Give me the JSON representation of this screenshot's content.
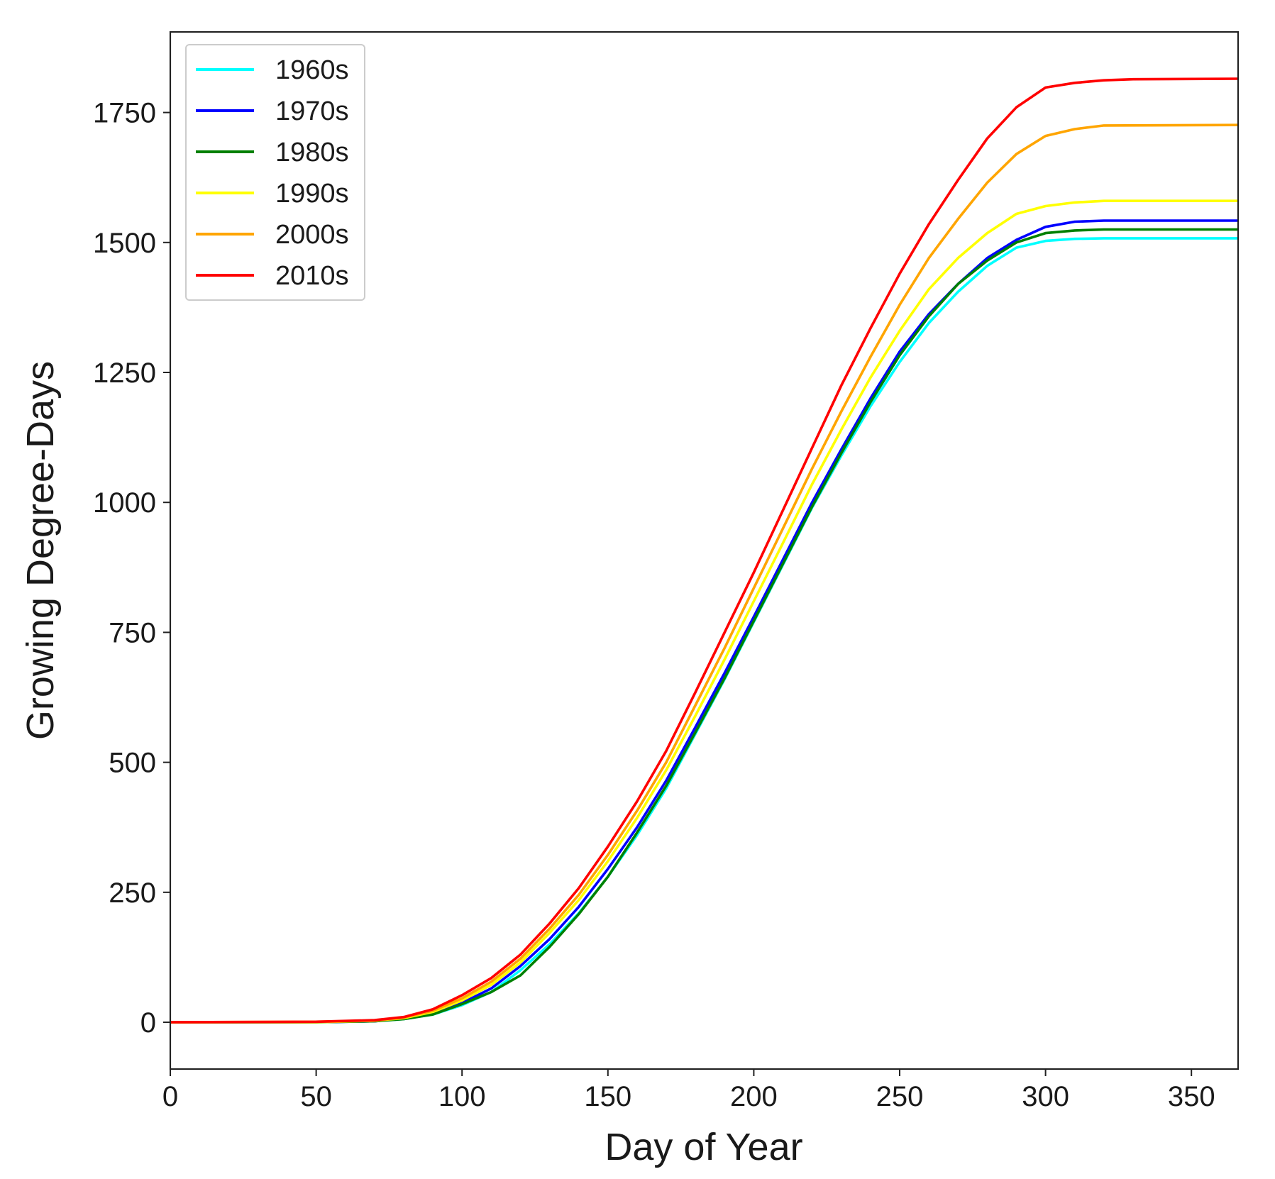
{
  "chart_data": {
    "type": "line",
    "title": "",
    "xlabel": "Day of Year",
    "ylabel": "Growing Degree-Days",
    "xlim": [
      0,
      366
    ],
    "ylim": [
      -90,
      1905
    ],
    "xticks": [
      0,
      50,
      100,
      150,
      200,
      250,
      300,
      350
    ],
    "yticks": [
      0,
      250,
      500,
      750,
      1000,
      1250,
      1500,
      1750
    ],
    "xtick_labels": [
      "0",
      "50",
      "100",
      "150",
      "200",
      "250",
      "300",
      "350"
    ],
    "ytick_labels": [
      "0",
      "250",
      "500",
      "750",
      "1000",
      "1250",
      "1500",
      "1750"
    ],
    "grid": false,
    "legend_position": "top-left",
    "series": [
      {
        "name": "1960s",
        "color": "#00ffff",
        "points": [
          [
            0,
            0
          ],
          [
            50,
            0
          ],
          [
            70,
            2
          ],
          [
            80,
            6
          ],
          [
            90,
            15
          ],
          [
            100,
            33
          ],
          [
            110,
            58
          ],
          [
            120,
            100
          ],
          [
            130,
            150
          ],
          [
            140,
            210
          ],
          [
            150,
            280
          ],
          [
            160,
            360
          ],
          [
            170,
            450
          ],
          [
            180,
            555
          ],
          [
            190,
            660
          ],
          [
            200,
            770
          ],
          [
            210,
            880
          ],
          [
            220,
            990
          ],
          [
            230,
            1090
          ],
          [
            240,
            1185
          ],
          [
            250,
            1270
          ],
          [
            260,
            1345
          ],
          [
            270,
            1405
          ],
          [
            280,
            1455
          ],
          [
            290,
            1490
          ],
          [
            300,
            1503
          ],
          [
            310,
            1507
          ],
          [
            320,
            1508
          ],
          [
            366,
            1508
          ]
        ]
      },
      {
        "name": "1970s",
        "color": "#0000ff",
        "points": [
          [
            0,
            0
          ],
          [
            50,
            0
          ],
          [
            70,
            2
          ],
          [
            80,
            7
          ],
          [
            90,
            17
          ],
          [
            100,
            37
          ],
          [
            110,
            65
          ],
          [
            120,
            108
          ],
          [
            130,
            160
          ],
          [
            140,
            222
          ],
          [
            150,
            295
          ],
          [
            160,
            375
          ],
          [
            170,
            465
          ],
          [
            180,
            568
          ],
          [
            190,
            672
          ],
          [
            200,
            780
          ],
          [
            210,
            890
          ],
          [
            220,
            1000
          ],
          [
            230,
            1102
          ],
          [
            240,
            1200
          ],
          [
            250,
            1290
          ],
          [
            260,
            1362
          ],
          [
            270,
            1420
          ],
          [
            280,
            1470
          ],
          [
            290,
            1505
          ],
          [
            300,
            1530
          ],
          [
            310,
            1540
          ],
          [
            320,
            1542
          ],
          [
            366,
            1542
          ]
        ]
      },
      {
        "name": "1980s",
        "color": "#008000",
        "points": [
          [
            0,
            0
          ],
          [
            50,
            0
          ],
          [
            70,
            2
          ],
          [
            80,
            6
          ],
          [
            90,
            15
          ],
          [
            100,
            35
          ],
          [
            110,
            58
          ],
          [
            120,
            90
          ],
          [
            130,
            145
          ],
          [
            140,
            208
          ],
          [
            150,
            280
          ],
          [
            160,
            365
          ],
          [
            170,
            455
          ],
          [
            180,
            558
          ],
          [
            190,
            662
          ],
          [
            200,
            772
          ],
          [
            210,
            882
          ],
          [
            220,
            992
          ],
          [
            230,
            1095
          ],
          [
            240,
            1193
          ],
          [
            250,
            1283
          ],
          [
            260,
            1358
          ],
          [
            270,
            1420
          ],
          [
            280,
            1465
          ],
          [
            290,
            1500
          ],
          [
            300,
            1518
          ],
          [
            310,
            1523
          ],
          [
            320,
            1525
          ],
          [
            366,
            1525
          ]
        ]
      },
      {
        "name": "1990s",
        "color": "#ffff00",
        "points": [
          [
            0,
            0
          ],
          [
            50,
            0
          ],
          [
            70,
            3
          ],
          [
            80,
            8
          ],
          [
            90,
            20
          ],
          [
            100,
            42
          ],
          [
            110,
            72
          ],
          [
            120,
            115
          ],
          [
            130,
            172
          ],
          [
            140,
            235
          ],
          [
            150,
            310
          ],
          [
            160,
            393
          ],
          [
            170,
            485
          ],
          [
            180,
            590
          ],
          [
            190,
            698
          ],
          [
            200,
            810
          ],
          [
            210,
            922
          ],
          [
            220,
            1035
          ],
          [
            230,
            1140
          ],
          [
            240,
            1240
          ],
          [
            250,
            1330
          ],
          [
            260,
            1410
          ],
          [
            270,
            1470
          ],
          [
            280,
            1518
          ],
          [
            290,
            1555
          ],
          [
            300,
            1570
          ],
          [
            310,
            1577
          ],
          [
            320,
            1580
          ],
          [
            366,
            1580
          ]
        ]
      },
      {
        "name": "2000s",
        "color": "#ffa500",
        "points": [
          [
            0,
            0
          ],
          [
            50,
            1
          ],
          [
            70,
            3
          ],
          [
            80,
            9
          ],
          [
            90,
            22
          ],
          [
            100,
            46
          ],
          [
            110,
            78
          ],
          [
            120,
            122
          ],
          [
            130,
            180
          ],
          [
            140,
            245
          ],
          [
            150,
            322
          ],
          [
            160,
            407
          ],
          [
            170,
            500
          ],
          [
            180,
            610
          ],
          [
            190,
            720
          ],
          [
            200,
            835
          ],
          [
            210,
            950
          ],
          [
            220,
            1065
          ],
          [
            230,
            1175
          ],
          [
            240,
            1280
          ],
          [
            250,
            1380
          ],
          [
            260,
            1470
          ],
          [
            270,
            1545
          ],
          [
            280,
            1615
          ],
          [
            290,
            1670
          ],
          [
            300,
            1705
          ],
          [
            310,
            1718
          ],
          [
            320,
            1725
          ],
          [
            366,
            1726
          ]
        ]
      },
      {
        "name": "2010s",
        "color": "#ff0000",
        "points": [
          [
            0,
            0
          ],
          [
            50,
            1
          ],
          [
            70,
            4
          ],
          [
            80,
            10
          ],
          [
            90,
            25
          ],
          [
            100,
            52
          ],
          [
            110,
            85
          ],
          [
            120,
            130
          ],
          [
            130,
            190
          ],
          [
            140,
            258
          ],
          [
            150,
            338
          ],
          [
            160,
            425
          ],
          [
            170,
            522
          ],
          [
            180,
            635
          ],
          [
            190,
            750
          ],
          [
            200,
            865
          ],
          [
            210,
            985
          ],
          [
            220,
            1105
          ],
          [
            230,
            1225
          ],
          [
            240,
            1335
          ],
          [
            250,
            1440
          ],
          [
            260,
            1535
          ],
          [
            270,
            1620
          ],
          [
            280,
            1700
          ],
          [
            290,
            1760
          ],
          [
            300,
            1798
          ],
          [
            310,
            1807
          ],
          [
            320,
            1812
          ],
          [
            330,
            1814
          ],
          [
            366,
            1815
          ]
        ]
      }
    ]
  }
}
